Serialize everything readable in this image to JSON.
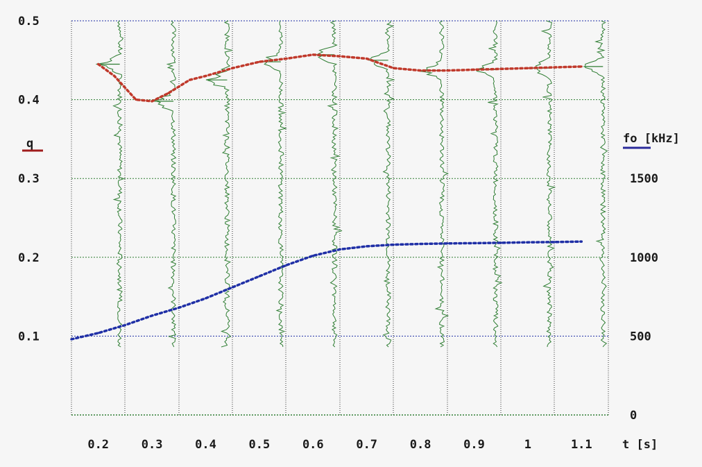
{
  "chart_data": {
    "type": "line",
    "xlabel": "t [s]",
    "x_ticks": [
      "0.2",
      "0.3",
      "0.4",
      "0.5",
      "0.6",
      "0.7",
      "0.8",
      "0.9",
      "1",
      "1.1"
    ],
    "xlim": [
      0.15,
      1.15
    ],
    "left_axis": {
      "label": "q",
      "color": "#a01c1c",
      "ylim": [
        0.0,
        0.5
      ],
      "ticks": [
        "0.1",
        "0.2",
        "0.3",
        "0.4",
        "0.5"
      ]
    },
    "right_axis": {
      "label": "fo [kHz]",
      "color": "#2a2a9a",
      "ylim": [
        0,
        2500
      ],
      "ticks": [
        "0",
        "500",
        "1000",
        "1500"
      ]
    },
    "grid": true,
    "series": [
      {
        "axis": "left",
        "color": "#c0392b",
        "style": "dotted",
        "x": [
          0.2,
          0.23,
          0.27,
          0.3,
          0.33,
          0.37,
          0.4,
          0.45,
          0.5,
          0.55,
          0.6,
          0.65,
          0.7,
          0.75,
          0.8,
          0.85,
          0.9,
          0.95,
          1.0,
          1.05,
          1.1
        ],
        "values": [
          0.445,
          0.43,
          0.4,
          0.398,
          0.408,
          0.425,
          0.43,
          0.44,
          0.448,
          0.452,
          0.457,
          0.455,
          0.452,
          0.44,
          0.437,
          0.437,
          0.438,
          0.439,
          0.44,
          0.441,
          0.442
        ]
      },
      {
        "axis": "right",
        "color": "#1f2fa6",
        "style": "dotted",
        "x": [
          0.15,
          0.2,
          0.25,
          0.3,
          0.35,
          0.4,
          0.45,
          0.5,
          0.55,
          0.6,
          0.65,
          0.7,
          0.75,
          0.8,
          0.85,
          0.9,
          0.95,
          1.0,
          1.05,
          1.1
        ],
        "values": [
          480,
          520,
          570,
          630,
          680,
          740,
          810,
          880,
          950,
          1010,
          1050,
          1070,
          1080,
          1085,
          1088,
          1090,
          1092,
          1095,
          1097,
          1100
        ]
      }
    ],
    "spectra": {
      "color": "#2e7d32",
      "positions": [
        0.24,
        0.34,
        0.44,
        0.54,
        0.64,
        0.74,
        0.84,
        0.94,
        1.04,
        1.14
      ],
      "peak_q": [
        0.445,
        0.398,
        0.425,
        0.448,
        0.457,
        0.45,
        0.437,
        0.438,
        0.44,
        0.442
      ]
    }
  }
}
